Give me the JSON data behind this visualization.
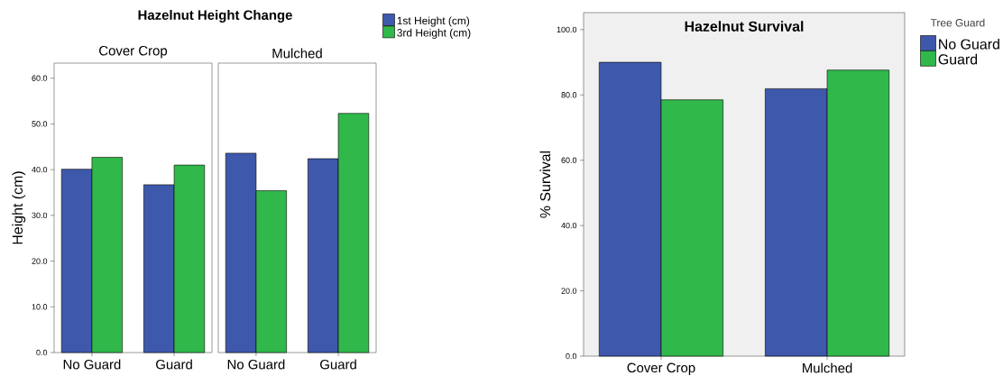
{
  "chart_data": [
    {
      "type": "bar",
      "title": "Hazelnut Height Change",
      "subtitle": "Cover Crop",
      "ylabel": "Height (cm)",
      "categories": [
        "No Guard",
        "Guard"
      ],
      "series": [
        {
          "color": "#3e58ac",
          "values": [
            40.1,
            36.7
          ]
        },
        {
          "color": "#30b84a",
          "values": [
            42.7,
            41.0
          ]
        }
      ],
      "ylim": [
        0,
        63.3
      ],
      "yticks": [
        {
          "value": 0,
          "label": "0.0"
        },
        {
          "value": 10,
          "label": "10.0"
        },
        {
          "value": 20,
          "label": "20.0"
        },
        {
          "value": 30,
          "label": "30.0"
        },
        {
          "value": 40,
          "label": "40.0"
        },
        {
          "value": 50,
          "label": "50.0"
        },
        {
          "value": 60,
          "label": "60.0"
        }
      ],
      "legend": false
    },
    {
      "type": "bar",
      "subtitle": "Mulched",
      "categories": [
        "No Guard",
        "Guard"
      ],
      "series": [
        {
          "name": "1st Height (cm)",
          "color": "#3e58ac",
          "values": [
            43.6,
            42.4
          ]
        },
        {
          "name": "3rd Height (cm)",
          "color": "#30b84a",
          "values": [
            35.4,
            52.3
          ]
        }
      ],
      "ylim": [
        0,
        63.3
      ],
      "tick_labels": "x",
      "legend": "top right"
    },
    {
      "type": "bar",
      "title": "Hazelnut Survival",
      "ylabel": "% Survival",
      "legend_title": "Tree Guard",
      "categories": [
        "Cover Crop",
        "Mulched"
      ],
      "series": [
        {
          "name": "No Guard",
          "color": "#3e58ac",
          "values": [
            90.0,
            81.9
          ]
        },
        {
          "name": "Guard",
          "color": "#30b84a",
          "values": [
            78.5,
            87.6
          ]
        }
      ],
      "ylim": [
        0,
        105.2
      ],
      "yticks": [
        {
          "value": 0,
          "label": "0.0"
        },
        {
          "value": 20,
          "label": "20.0"
        },
        {
          "value": 40,
          "label": "40.0"
        },
        {
          "value": 60,
          "label": "60.0"
        },
        {
          "value": 80,
          "label": "80.0"
        },
        {
          "value": 100,
          "label": "100.0"
        }
      ],
      "legend": "top right"
    }
  ]
}
